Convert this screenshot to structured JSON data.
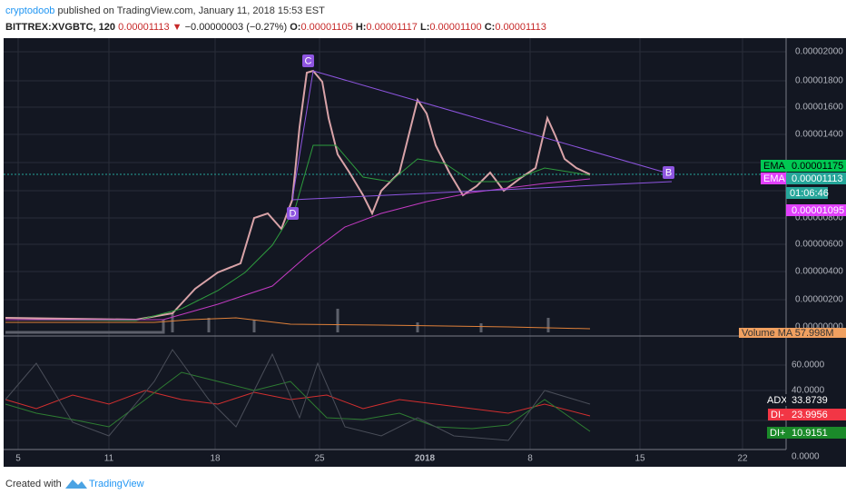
{
  "header": {
    "author": "cryptodoob",
    "published": "published on TradingView.com, January 11, 2018 15:53 EST",
    "symbol": "BITTREX:XVGBTC, 120",
    "last": "0.00001113",
    "arrow": "▼",
    "change": "−0.00000003 (−0.27%)",
    "ohlc": [
      {
        "label": "O:",
        "value": "0.00001105"
      },
      {
        "label": "H:",
        "value": "0.00001117"
      },
      {
        "label": "L:",
        "value": "0.00001100"
      },
      {
        "label": "C:",
        "value": "0.00001113"
      }
    ]
  },
  "price_axis": {
    "ticks": [
      "0.00002000",
      "0.00001800",
      "0.00001600",
      "0.00001400",
      "0.00000800",
      "0.00000600",
      "0.00000400",
      "0.00000200",
      "0.00000000"
    ],
    "badges": [
      {
        "label": "EMA",
        "value": "0.00001175"
      },
      {
        "label": "EMA",
        "value": "0.00001113"
      }
    ],
    "countdown": "01:06:46",
    "low_badge": "0.00001095",
    "volume_ma": "Volume MA",
    "volume_ma_value": "57.998M"
  },
  "indicator": {
    "ticks": [
      "60.0000",
      "40.0000",
      "0.0000"
    ],
    "labels": [
      {
        "label": "ADX",
        "value": "33.8739"
      },
      {
        "label": "DI-",
        "value": "23.9956"
      },
      {
        "label": "DI+",
        "value": "10.9151"
      }
    ]
  },
  "date_axis": [
    "5",
    "11",
    "18",
    "25",
    "2018",
    "8",
    "15",
    "22"
  ],
  "annotations": [
    "C",
    "D",
    "B"
  ],
  "footer": {
    "created": "Created with",
    "brand": "TradingView"
  }
}
